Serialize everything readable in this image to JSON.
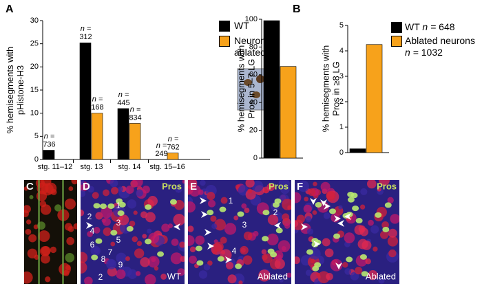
{
  "chart_data": [
    {
      "type": "bar",
      "panel": "A",
      "y_label": "% hemisegments with pHistone-H3",
      "categories": [
        "stg. 11–12",
        "stg. 13",
        "stg. 14",
        "stg. 15–16"
      ],
      "n_prefix": "n =",
      "series": [
        {
          "name": "WT",
          "color": "#000000",
          "values": [
            2,
            25.2,
            11,
            0
          ],
          "n_labels": [
            "736",
            "312",
            "445",
            "249"
          ]
        },
        {
          "name": "Neurons ablated",
          "color": "#f7a21b",
          "values": [
            null,
            10,
            7.8,
            1.4
          ],
          "n_labels": [
            null,
            "168",
            "834",
            "762"
          ]
        }
      ],
      "ylim": [
        0,
        30
      ],
      "yticks": [
        0,
        5,
        10,
        15,
        20,
        25,
        30
      ]
    },
    {
      "type": "bar",
      "panel": "B",
      "y_label": "% hemisegments with Pros in 5–7 LG",
      "series": [
        {
          "name": "WT",
          "color": "#000000",
          "values": [
            99
          ]
        },
        {
          "name": "Ablated neurons",
          "color": "#f7a21b",
          "values": [
            66
          ]
        }
      ],
      "ylim": [
        0,
        100
      ],
      "yticks": [
        0,
        20,
        40,
        60,
        80,
        100
      ]
    },
    {
      "type": "bar",
      "y_label": "% hemisegments with Pros in ≥8 LG",
      "n_prefix": "n =",
      "series": [
        {
          "name": "WT",
          "color": "#000000",
          "values": [
            0.15
          ],
          "n_labels": [
            "648"
          ]
        },
        {
          "name": "Ablated neurons",
          "color": "#f7a21b",
          "values": [
            4.25
          ],
          "n_labels": [
            "1032"
          ]
        }
      ],
      "ylim": [
        0,
        5
      ],
      "yticks": [
        0,
        1,
        2,
        3,
        4,
        5
      ]
    }
  ],
  "panels": [
    {
      "label": "C"
    },
    {
      "label": "D",
      "stain": "Pros",
      "caption": "WT",
      "numbers": [
        "1",
        "2",
        "3",
        "4",
        "5",
        "6",
        "7",
        "8",
        "9",
        "2"
      ]
    },
    {
      "label": "E",
      "stain": "Pros",
      "caption": "Ablated",
      "numbers": [
        "1",
        "2",
        "3",
        "4"
      ]
    },
    {
      "label": "F",
      "stain": "Pros",
      "caption": "Ablated"
    }
  ]
}
